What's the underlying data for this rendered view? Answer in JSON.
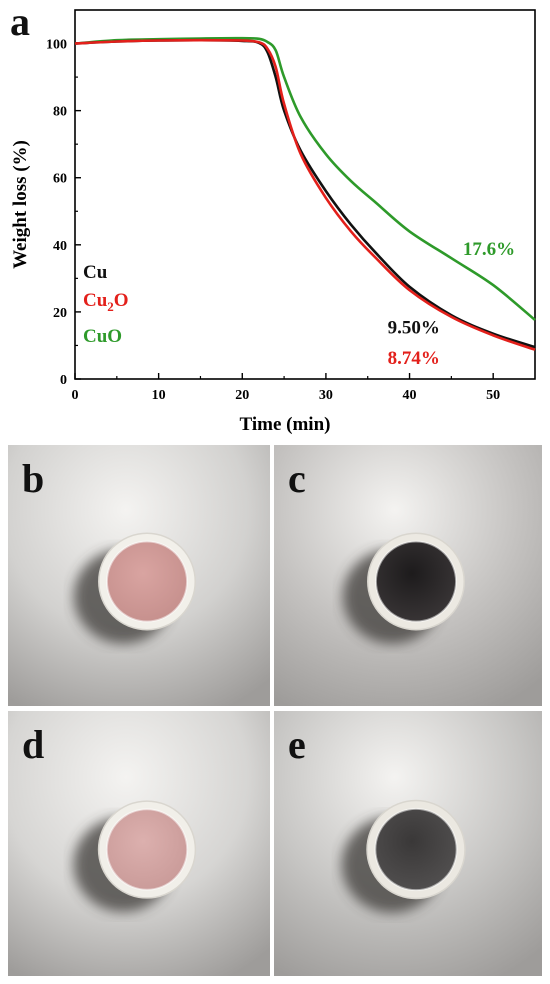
{
  "chart_data": {
    "type": "line",
    "panel_label": "a",
    "xlabel": "Time (min)",
    "ylabel": "Weight loss (%)",
    "xlim": [
      0,
      55
    ],
    "ylim": [
      0,
      110
    ],
    "xticks": [
      0,
      10,
      20,
      30,
      40,
      50
    ],
    "yticks": [
      0,
      20,
      40,
      60,
      80,
      100
    ],
    "grid": false,
    "legend_position": "lower-left",
    "series": [
      {
        "name": "Cu",
        "color": "#111111",
        "x": [
          0,
          5,
          10,
          15,
          20,
          22,
          23,
          24,
          25,
          27,
          30,
          33,
          36,
          40,
          45,
          50,
          55
        ],
        "y": [
          100,
          100.6,
          100.9,
          101.0,
          100.8,
          100.2,
          97.5,
          90,
          80,
          68,
          56,
          46,
          37.5,
          27.5,
          19,
          13.5,
          9.5
        ]
      },
      {
        "name": "Cu2O",
        "color": "#e3201b",
        "x": [
          0,
          5,
          10,
          15,
          20,
          22,
          23,
          24,
          25,
          27,
          30,
          33,
          36,
          40,
          45,
          50,
          55
        ],
        "y": [
          100,
          100.6,
          100.9,
          101.0,
          100.9,
          100.4,
          98.5,
          93,
          82,
          67,
          54,
          44,
          36,
          26.5,
          18.5,
          13,
          8.74
        ]
      },
      {
        "name": "CuO",
        "color": "#2e9a2a",
        "x": [
          0,
          5,
          10,
          15,
          20,
          22,
          23,
          24,
          25,
          27,
          30,
          33,
          36,
          40,
          45,
          50,
          55
        ],
        "y": [
          100,
          101.0,
          101.3,
          101.5,
          101.6,
          101.4,
          100.5,
          98,
          90,
          78,
          67,
          59,
          52.5,
          44,
          36,
          28,
          17.6
        ]
      }
    ],
    "legend": [
      {
        "label": "Cu",
        "color": "#111111"
      },
      {
        "label": "Cu",
        "sub": "2",
        "suffix": "O",
        "color": "#e3201b"
      },
      {
        "label": "CuO",
        "color": "#2e9a2a"
      }
    ],
    "annotations": [
      {
        "text": "17.6%",
        "color": "#2e9a2a",
        "x": 49.5,
        "y": 37
      },
      {
        "text": "9.50%",
        "color": "#111111",
        "x": 40.5,
        "y": 13.5
      },
      {
        "text": "8.74%",
        "color": "#e3201b",
        "x": 40.5,
        "y": 4.5
      }
    ]
  },
  "photos": [
    {
      "label": "b",
      "background": "#d2d1cf",
      "cup": "#f2f0ea",
      "powder": "#d9a4a1",
      "powder_edge": "#c58f8c"
    },
    {
      "label": "c",
      "background": "#c4c2c0",
      "cup": "#ece9e2",
      "powder": "#1d1b1c",
      "powder_edge": "#3a3637"
    },
    {
      "label": "d",
      "background": "#d6d5d3",
      "cup": "#f1efe9",
      "powder": "#dcb0ae",
      "powder_edge": "#c99a98"
    },
    {
      "label": "e",
      "background": "#c7c6c4",
      "cup": "#ebe8e1",
      "powder": "#3a3838",
      "powder_edge": "#525050"
    }
  ]
}
